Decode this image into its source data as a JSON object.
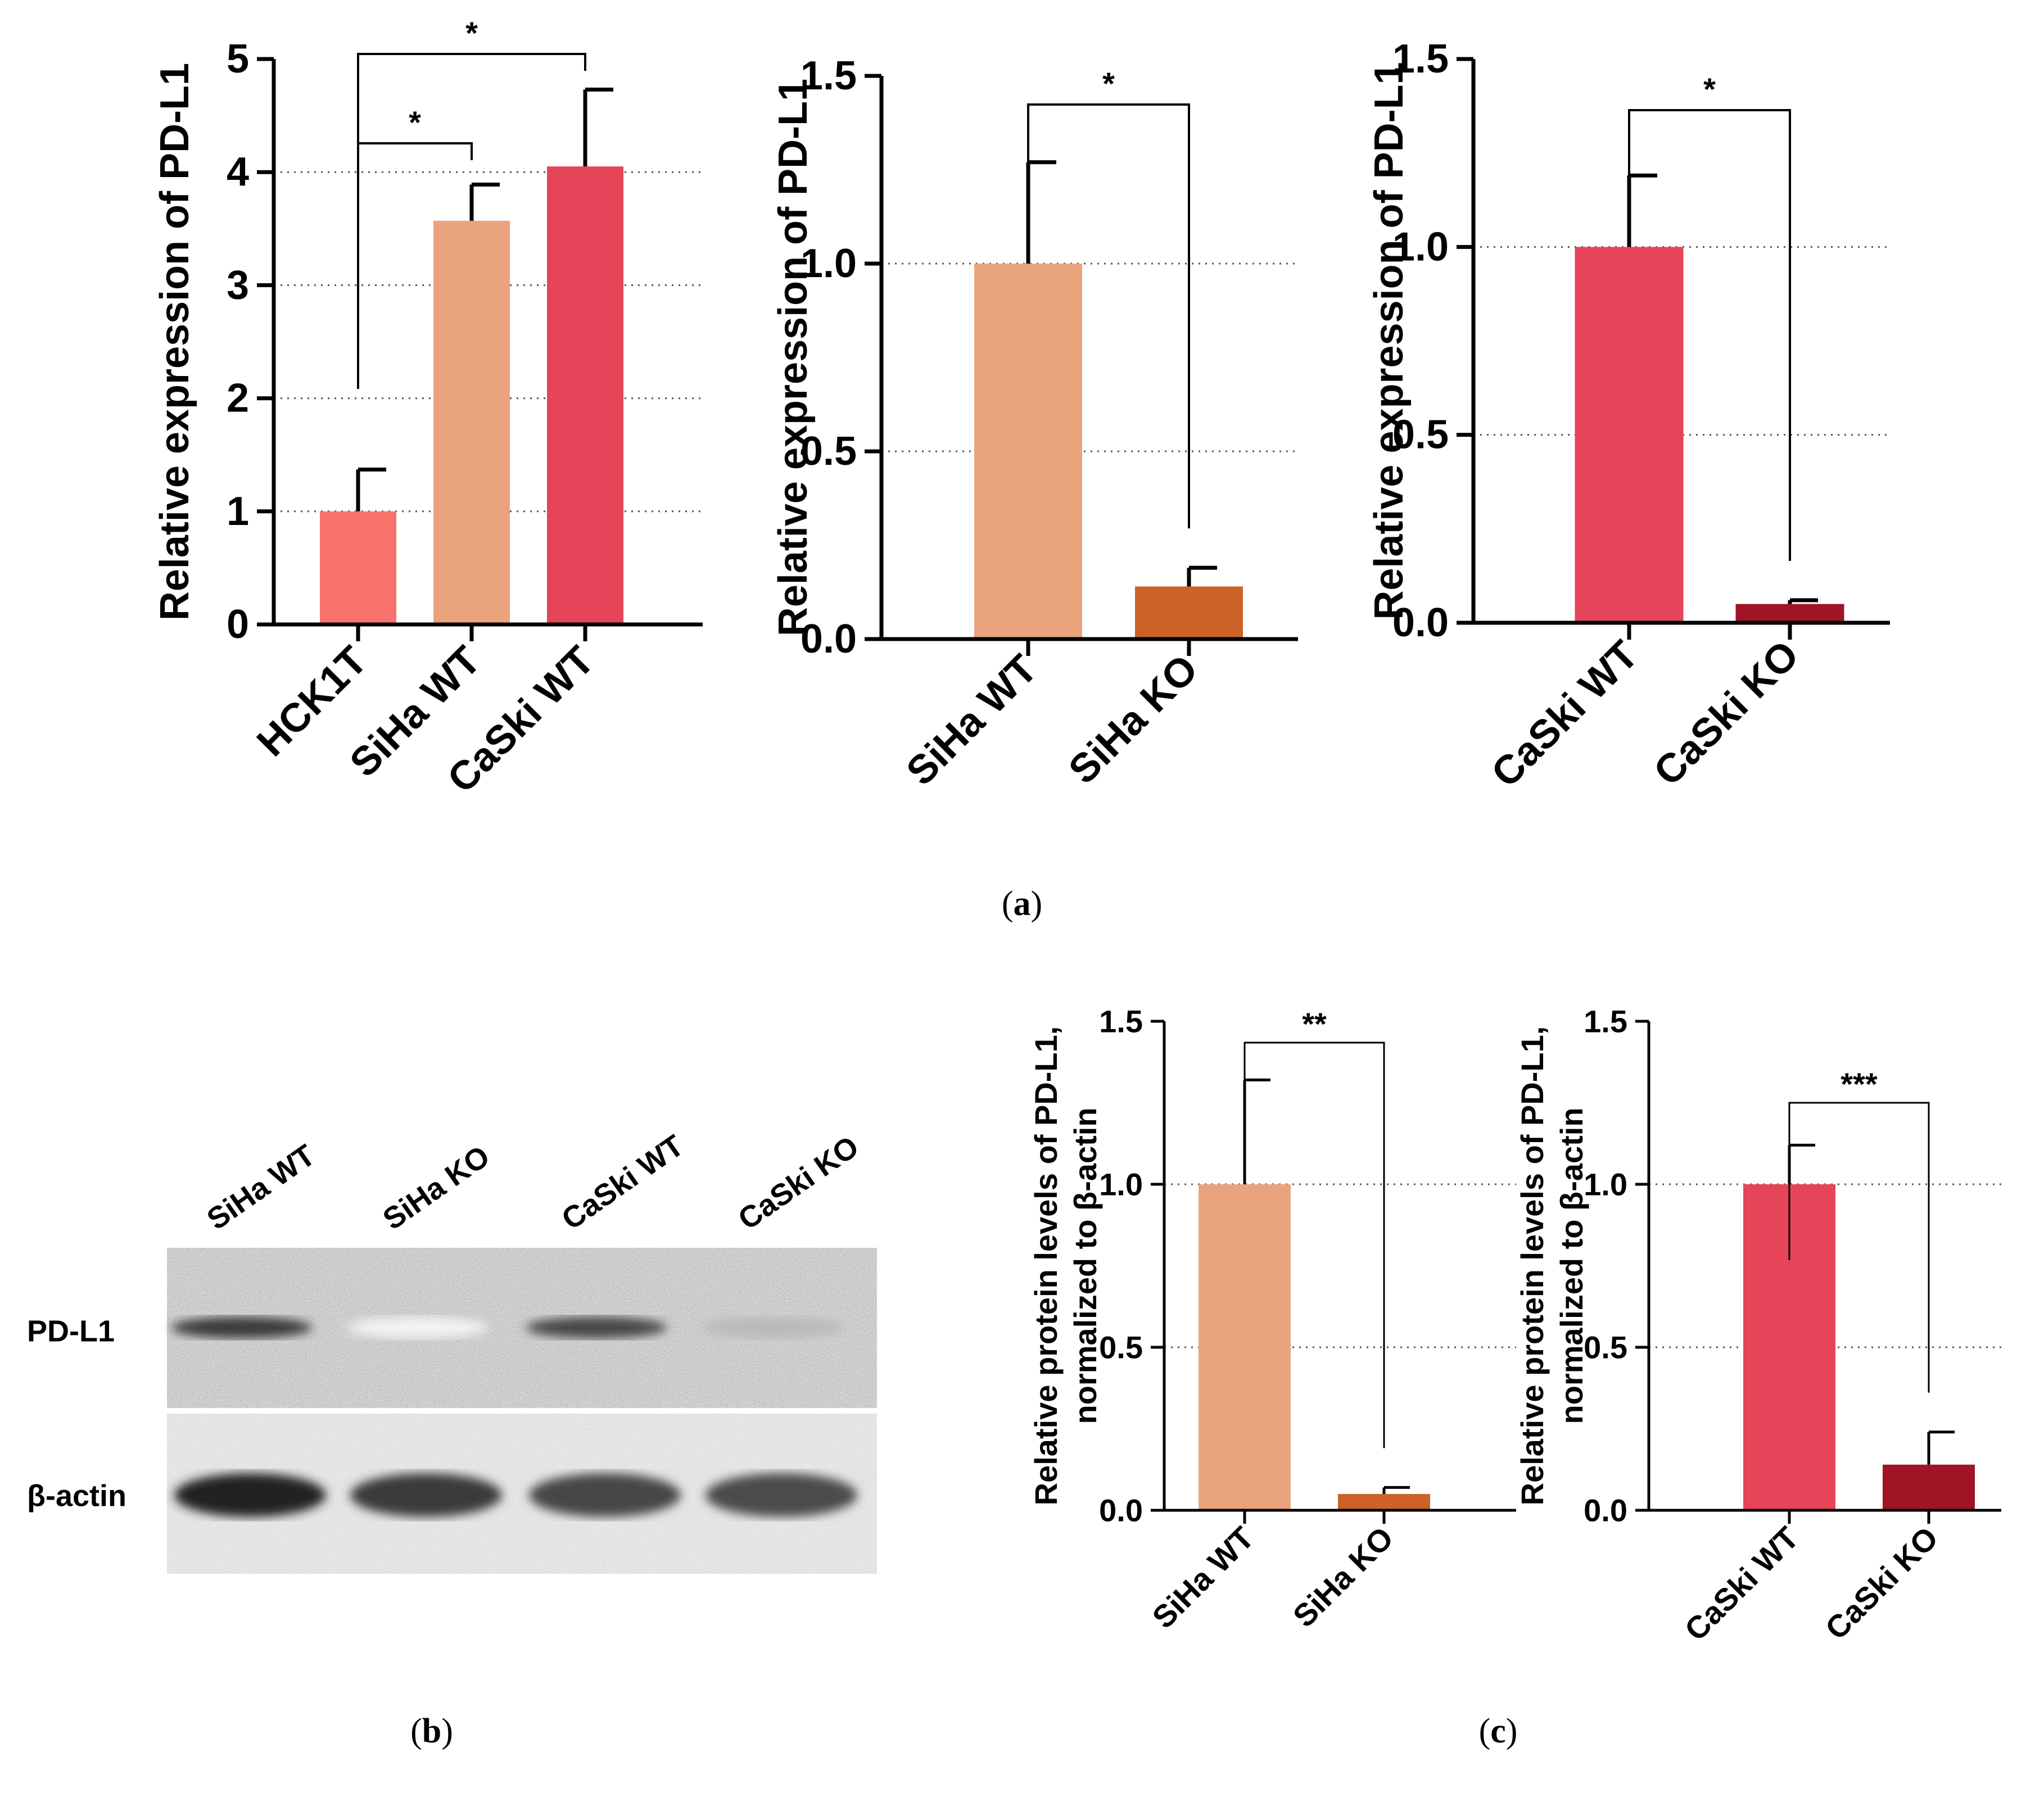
{
  "chart_data": [
    {
      "id": "a1",
      "type": "bar",
      "ylabel": "Relative expression of PD-L1",
      "ylim": [
        0,
        5
      ],
      "yticks": [
        0,
        1,
        2,
        3,
        4,
        5
      ],
      "grid": true,
      "categories": [
        "HCK1T",
        "SiHa WT",
        "CaSki WT"
      ],
      "values": [
        1.0,
        3.57,
        4.05
      ],
      "errors": [
        0.37,
        0.32,
        0.68
      ],
      "colors": [
        "#F8736E",
        "#E9A47D",
        "#E64458"
      ],
      "significance": [
        {
          "from": 0,
          "to": 1,
          "label": "*"
        },
        {
          "from": 0,
          "to": 2,
          "label": "*"
        }
      ]
    },
    {
      "id": "a2",
      "type": "bar",
      "ylabel": "Relative expression of PD-L1",
      "ylim": [
        0,
        1.5
      ],
      "yticks": [
        "0.0",
        "0.5",
        "1.0",
        "1.5"
      ],
      "grid": true,
      "categories": [
        "SiHa WT",
        "SiHa KO"
      ],
      "values": [
        1.0,
        0.14
      ],
      "errors": [
        0.27,
        0.05
      ],
      "colors": [
        "#E9A47D",
        "#CC6228"
      ],
      "significance": [
        {
          "from": 0,
          "to": 1,
          "label": "*"
        }
      ]
    },
    {
      "id": "a3",
      "type": "bar",
      "ylabel": "Relative expression of PD-L1",
      "ylim": [
        0,
        1.5
      ],
      "yticks": [
        "0.0",
        "0.5",
        "1.0",
        "1.5"
      ],
      "grid": true,
      "categories": [
        "CaSki WT",
        "CaSki KO"
      ],
      "values": [
        1.0,
        0.05
      ],
      "errors": [
        0.19,
        0.01
      ],
      "colors": [
        "#E64458",
        "#A01426"
      ],
      "significance": [
        {
          "from": 0,
          "to": 1,
          "label": "*"
        }
      ]
    },
    {
      "id": "c1",
      "type": "bar",
      "ylabel": [
        "Relative protein levels of PD-L1,",
        "normalized to β-actin"
      ],
      "ylim": [
        0,
        1.5
      ],
      "yticks": [
        "0.0",
        "0.5",
        "1.0",
        "1.5"
      ],
      "grid": true,
      "categories": [
        "SiHa WT",
        "SiHa KO"
      ],
      "values": [
        1.0,
        0.05
      ],
      "errors": [
        0.32,
        0.02
      ],
      "colors": [
        "#E9A47D",
        "#CC6228"
      ],
      "significance": [
        {
          "from": 0,
          "to": 1,
          "label": "**"
        }
      ]
    },
    {
      "id": "c2",
      "type": "bar",
      "ylabel": [
        "Relative protein levels of PD-L1,",
        "normalized to β-actin"
      ],
      "ylim": [
        0,
        1.5
      ],
      "yticks": [
        "0.0",
        "0.5",
        "1.0",
        "1.5"
      ],
      "grid": true,
      "categories": [
        "CaSki WT",
        "CaSki KO"
      ],
      "values": [
        1.0,
        0.14
      ],
      "errors": [
        0.12,
        0.1
      ],
      "colors": [
        "#E64458",
        "#A01426"
      ],
      "significance": [
        {
          "from": 0,
          "to": 1,
          "label": "***"
        }
      ]
    }
  ],
  "blot": {
    "lanes": [
      "SiHa WT",
      "SiHa KO",
      "CaSki WT",
      "CaSki KO"
    ],
    "rows": [
      {
        "label": "PD-L1",
        "intensities": [
          0.85,
          0.05,
          0.8,
          0.3
        ]
      },
      {
        "label": "β-actin",
        "intensities": [
          0.95,
          0.85,
          0.8,
          0.78
        ]
      }
    ]
  },
  "panel_labels": {
    "a": {
      "open": "(",
      "letter": "a",
      "close": ")"
    },
    "b": {
      "open": "(",
      "letter": "b",
      "close": ")"
    },
    "c": {
      "open": "(",
      "letter": "c",
      "close": ")"
    }
  }
}
